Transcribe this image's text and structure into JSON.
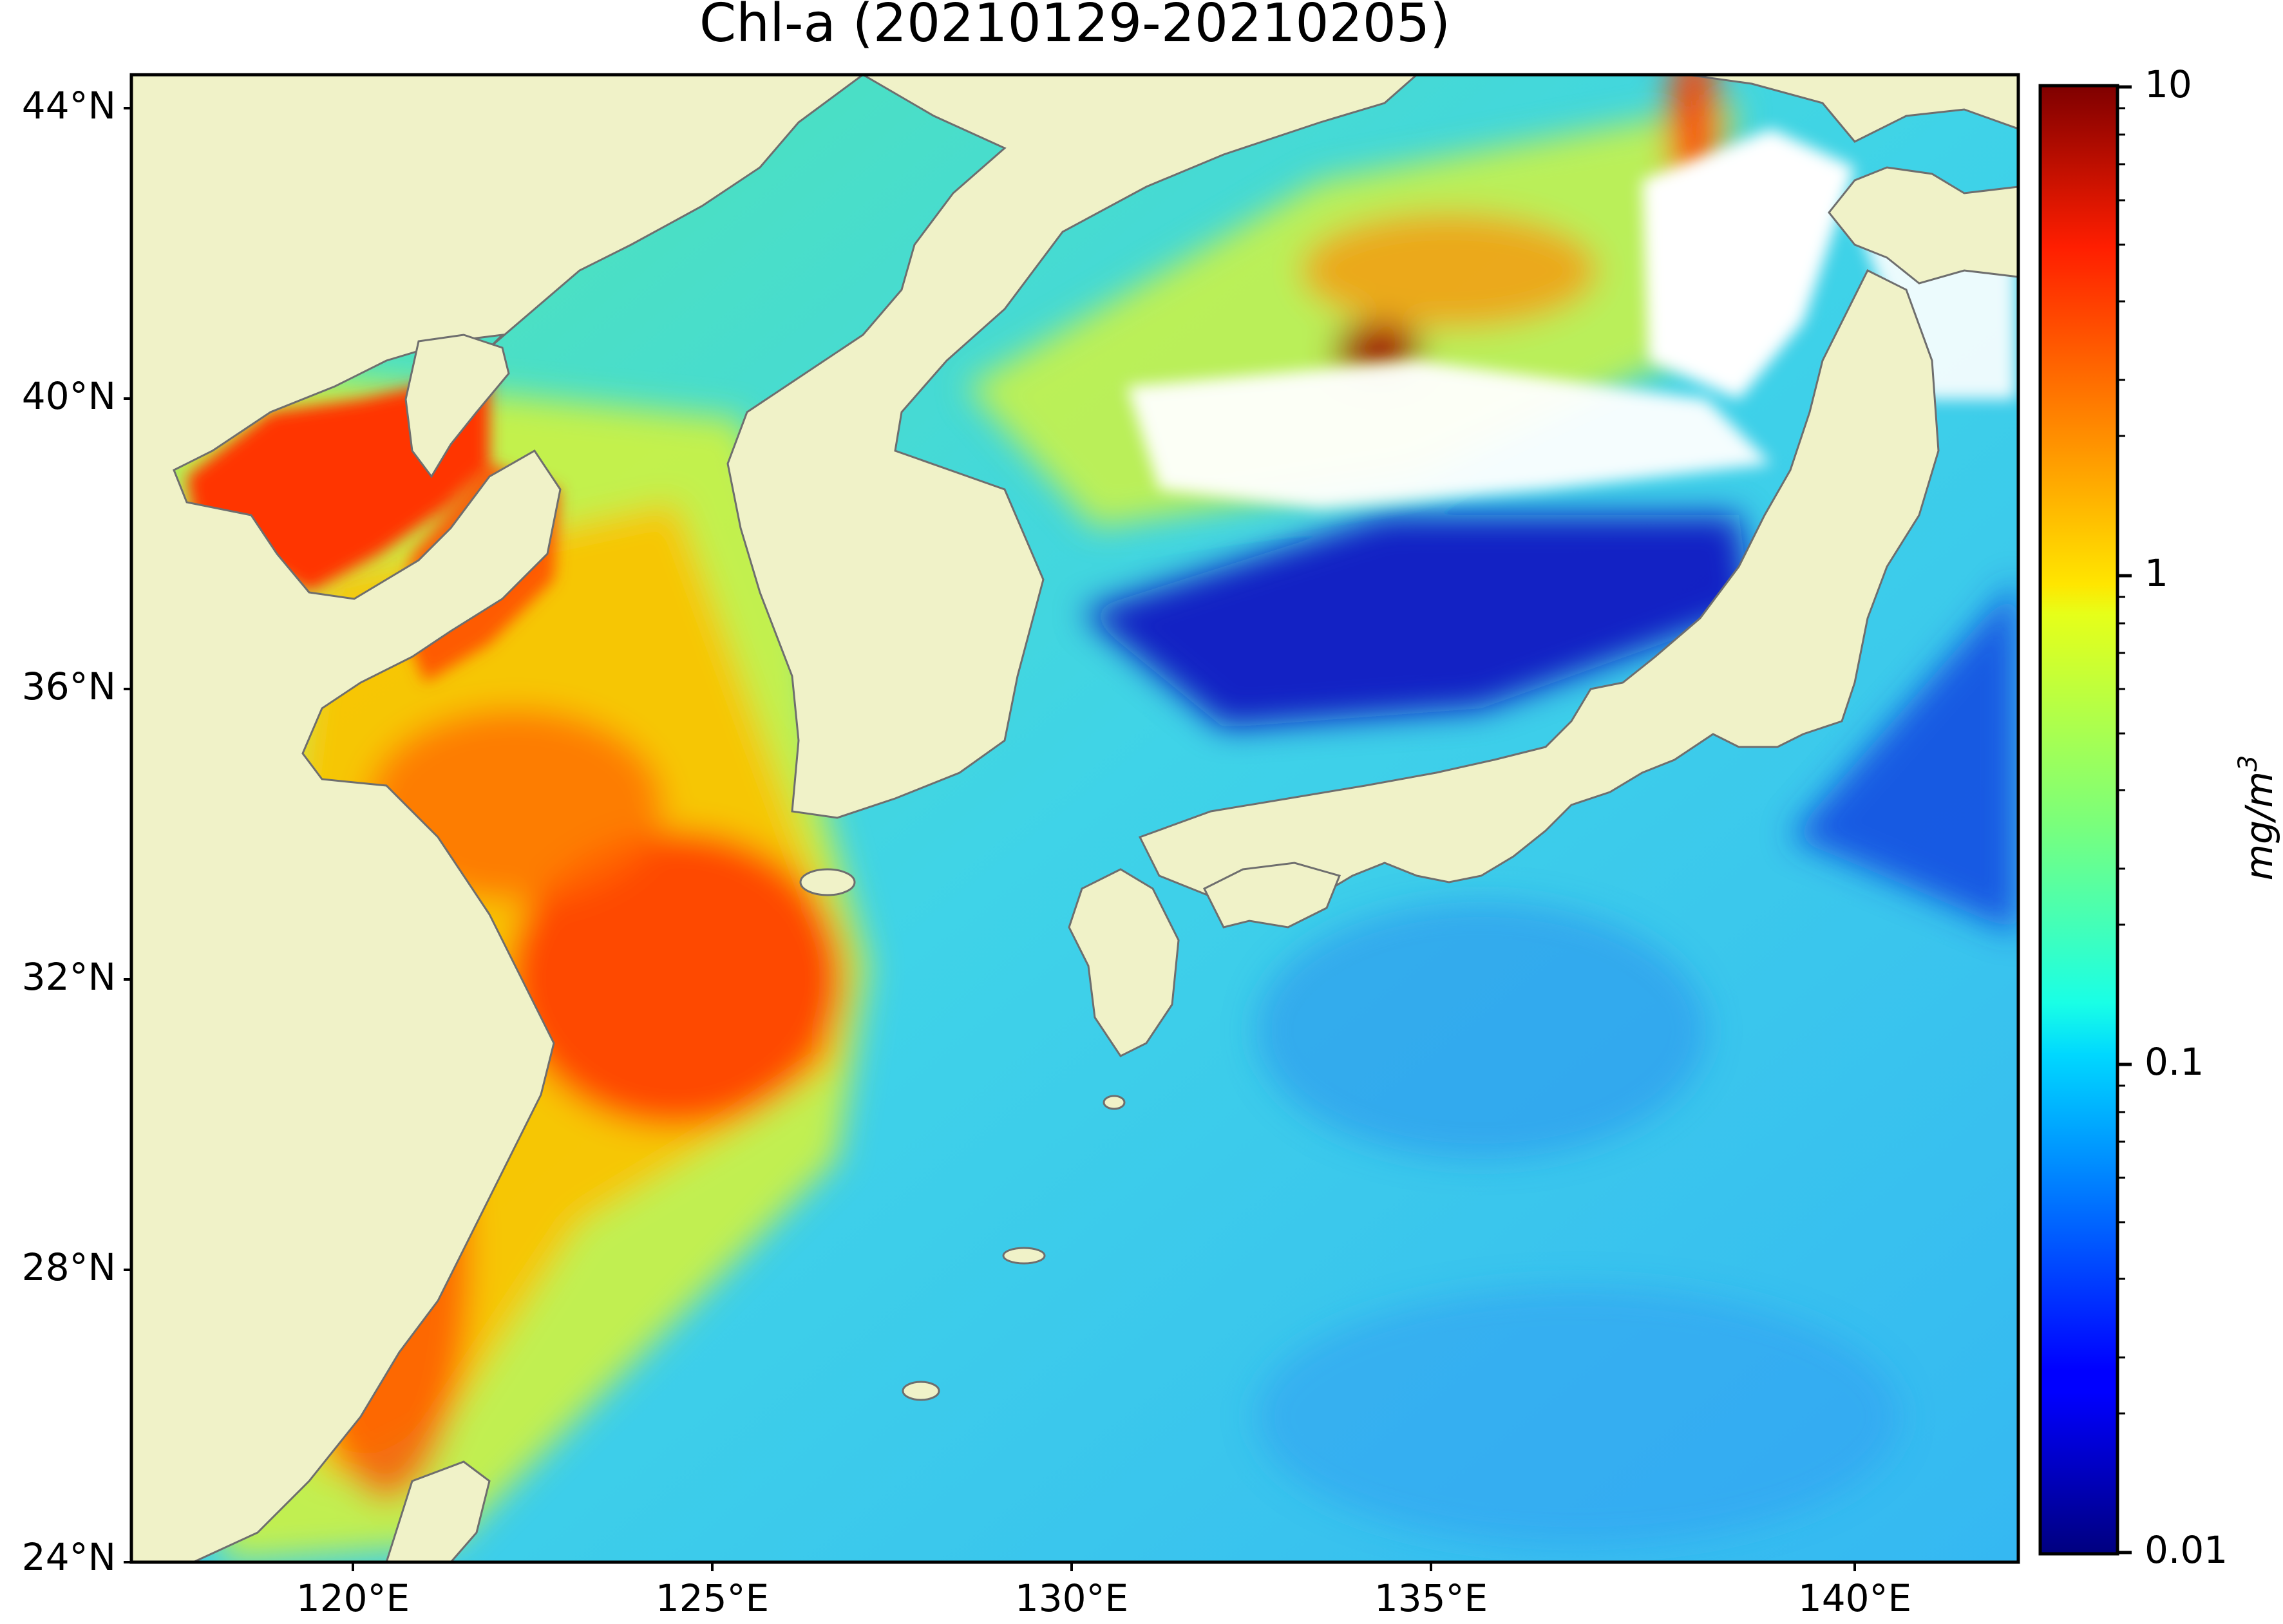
{
  "title": "Chl-a (20210129-20210205)",
  "map": {
    "lat_ticks": [
      "44°N",
      "40°N",
      "36°N",
      "32°N",
      "28°N",
      "24°N"
    ],
    "lon_ticks": [
      "120°E",
      "125°E",
      "130°E",
      "135°E",
      "140°E"
    ],
    "lon_range": [
      116.9,
      143.1
    ],
    "lat_range": [
      24,
      44.5
    ]
  },
  "colorbar": {
    "label": "mg/m",
    "label_superscript": "3",
    "scale": "log",
    "range": [
      0.01,
      10
    ],
    "tick_labels": [
      "10",
      "1",
      "0.1",
      "0.01"
    ],
    "colormap": "jet"
  },
  "colors": {
    "land": "#f0f2c8",
    "coastline": "#6e6e6e",
    "cloud_mask": "#ffffff"
  }
}
